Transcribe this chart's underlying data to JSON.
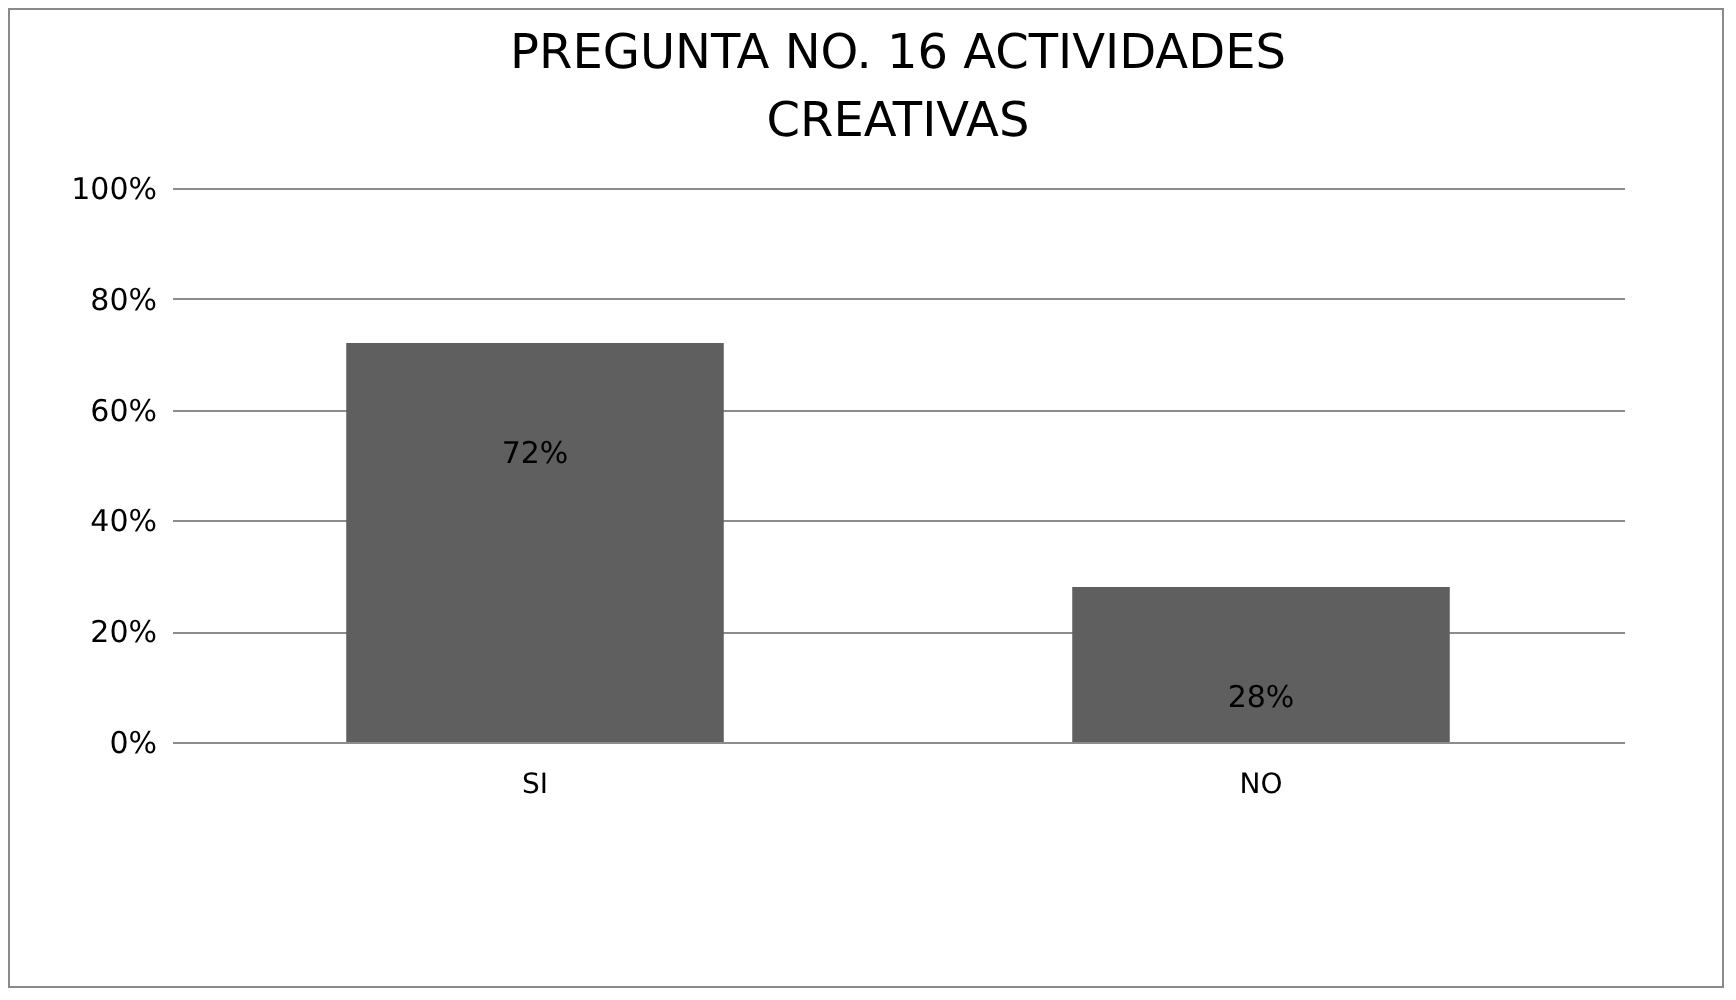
{
  "chart_data": {
    "type": "bar",
    "title": "PREGUNTA NO. 16  ACTIVIDADES CREATIVAS",
    "categories": [
      "SI",
      "NO"
    ],
    "values": [
      72,
      28
    ],
    "value_labels": [
      "72%",
      "28%"
    ],
    "color": "#5f5f5f",
    "ylim": [
      0,
      100
    ],
    "yticks": [
      {
        "value": 0,
        "label": "0%"
      },
      {
        "value": 20,
        "label": "20%"
      },
      {
        "value": 40,
        "label": "40%"
      },
      {
        "value": 60,
        "label": "60%"
      },
      {
        "value": 80,
        "label": "80%"
      },
      {
        "value": 100,
        "label": "100%"
      }
    ],
    "grid": "y"
  }
}
